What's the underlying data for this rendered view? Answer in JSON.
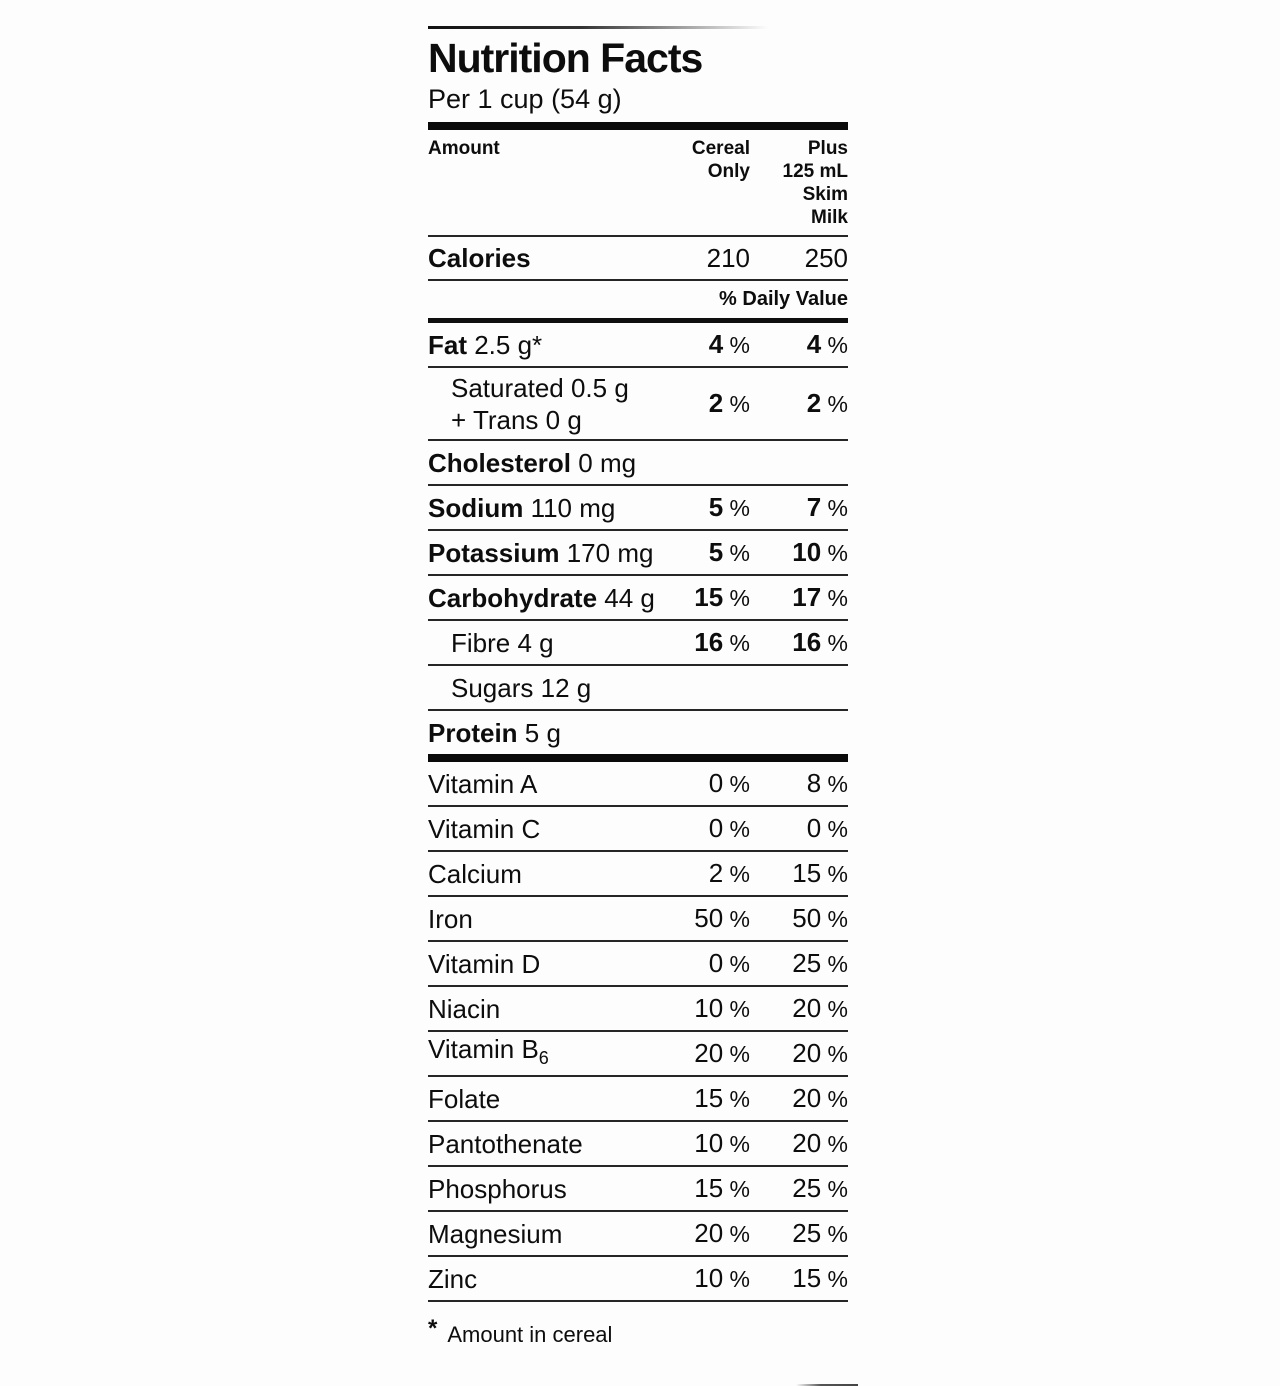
{
  "header": {
    "title": "Nutrition Facts",
    "serving": "Per 1 cup (54 g)"
  },
  "table": {
    "columns": {
      "amount": "Amount",
      "cereal_lines": [
        "Cereal",
        "Only"
      ],
      "milk_lines": [
        "Plus",
        "125 mL",
        "Skim",
        "Milk"
      ]
    },
    "calories": {
      "label": "Calories",
      "cereal": "210",
      "milk": "250"
    },
    "daily_value_label": "% Daily Value",
    "percent_sign": "%",
    "rows": [
      {
        "key": "fat",
        "bold": "Fat",
        "text": " 2.5 g*",
        "v1": "4",
        "v2": "4",
        "bold_values": true,
        "sep": "thin"
      },
      {
        "key": "saturated-trans",
        "lines": [
          "Saturated 0.5 g",
          "+ Trans 0 g"
        ],
        "indent": true,
        "v1": "2",
        "v2": "2",
        "bold_values": true,
        "sep": "thin"
      },
      {
        "key": "cholesterol",
        "bold": "Cholesterol",
        "text": " 0 mg",
        "sep": "thin"
      },
      {
        "key": "sodium",
        "bold": "Sodium",
        "text": " 110 mg",
        "v1": "5",
        "v2": "7",
        "bold_values": true,
        "sep": "thin"
      },
      {
        "key": "potassium",
        "bold": "Potassium",
        "text": " 170 mg",
        "v1": "5",
        "v2": "10",
        "bold_values": true,
        "sep": "thin"
      },
      {
        "key": "carbohydrate",
        "bold": "Carbohydrate",
        "text": " 44 g",
        "v1": "15",
        "v2": "17",
        "bold_values": true,
        "sep": "thin"
      },
      {
        "key": "fibre",
        "text": "Fibre 4 g",
        "indent": true,
        "v1": "16",
        "v2": "16",
        "bold_values": true,
        "sep": "thin"
      },
      {
        "key": "sugars",
        "text": "Sugars 12 g",
        "indent": true,
        "sep": "thin"
      },
      {
        "key": "protein",
        "bold": "Protein",
        "text": " 5 g",
        "sep": "thick"
      },
      {
        "key": "vitamin-a",
        "text": "Vitamin A",
        "v1": "0",
        "v2": "8",
        "sep": "thin"
      },
      {
        "key": "vitamin-c",
        "text": "Vitamin C",
        "v1": "0",
        "v2": "0",
        "sep": "thin"
      },
      {
        "key": "calcium",
        "text": "Calcium",
        "v1": "2",
        "v2": "15",
        "sep": "thin"
      },
      {
        "key": "iron",
        "text": "Iron",
        "v1": "50",
        "v2": "50",
        "sep": "thin"
      },
      {
        "key": "vitamin-d",
        "text": "Vitamin D",
        "v1": "0",
        "v2": "25",
        "sep": "thin"
      },
      {
        "key": "niacin",
        "text": "Niacin",
        "v1": "10",
        "v2": "20",
        "sep": "thin"
      },
      {
        "key": "vitamin-b6",
        "text": "Vitamin B",
        "sub": "6",
        "v1": "20",
        "v2": "20",
        "sep": "thin"
      },
      {
        "key": "folate",
        "text": "Folate",
        "v1": "15",
        "v2": "20",
        "sep": "thin"
      },
      {
        "key": "pantothenate",
        "text": "Pantothenate",
        "v1": "10",
        "v2": "20",
        "sep": "thin"
      },
      {
        "key": "phosphorus",
        "text": "Phosphorus",
        "v1": "15",
        "v2": "25",
        "sep": "thin"
      },
      {
        "key": "magnesium",
        "text": "Magnesium",
        "v1": "20",
        "v2": "25",
        "sep": "thin"
      },
      {
        "key": "zinc",
        "text": "Zinc",
        "v1": "10",
        "v2": "15",
        "sep": "thin"
      }
    ]
  },
  "footnote": {
    "star": "*",
    "text": "Amount in cereal"
  }
}
